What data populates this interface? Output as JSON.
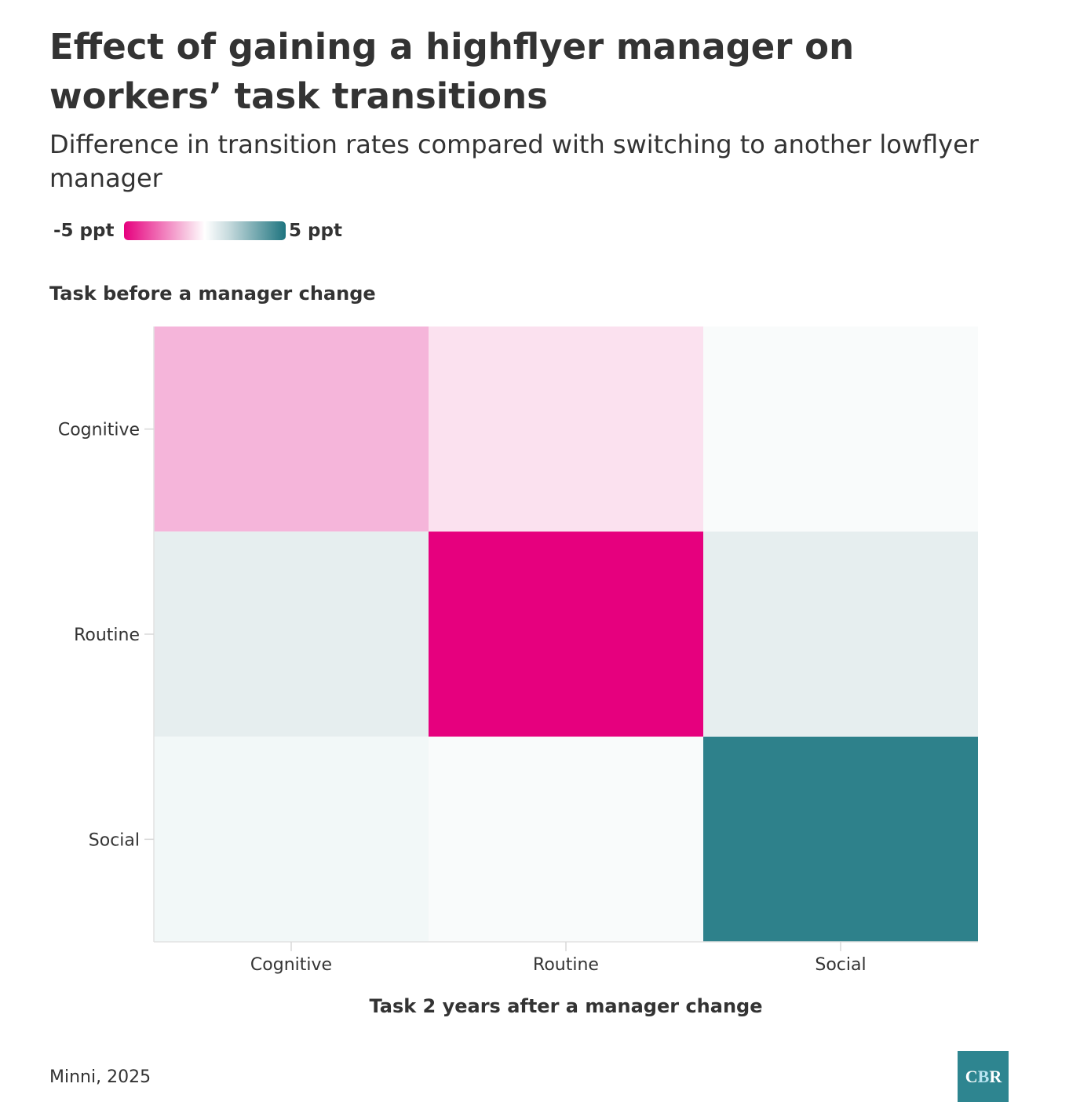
{
  "title": "Effect of gaining a highflyer manager on workers’ task transitions",
  "subtitle": "Difference in transition rates compared with switching to another lowflyer manager",
  "legend": {
    "min_label": "-5 ppt",
    "max_label": "5 ppt"
  },
  "source": "Minni, 2025",
  "logo": {
    "text": "CBR",
    "background": "#2e8590"
  },
  "colors": {
    "negative": "#e6007e",
    "positive": "#1e747f",
    "neutral": "#ffffff"
  },
  "chart_data": {
    "type": "heatmap",
    "xlabel": "Task 2 years after a manager change",
    "ylabel": "Task before a manager change",
    "x_categories": [
      "Cognitive",
      "Routine",
      "Social"
    ],
    "y_categories": [
      "Cognitive",
      "Routine",
      "Social"
    ],
    "color_range": [
      -5,
      5
    ],
    "unit": "ppt",
    "values": [
      [
        -1.6,
        -0.6,
        0.1
      ],
      [
        0.5,
        -5.0,
        0.5
      ],
      [
        0.3,
        0.1,
        4.0
      ]
    ],
    "cell_colors": [
      [
        "#f5b5da",
        "#fbe1ef",
        "#f9fbfb"
      ],
      [
        "#e6eeef",
        "#e6007e",
        "#e6eeef"
      ],
      [
        "#f2f8f8",
        "#f9fbfb",
        "#2e818b"
      ]
    ]
  }
}
